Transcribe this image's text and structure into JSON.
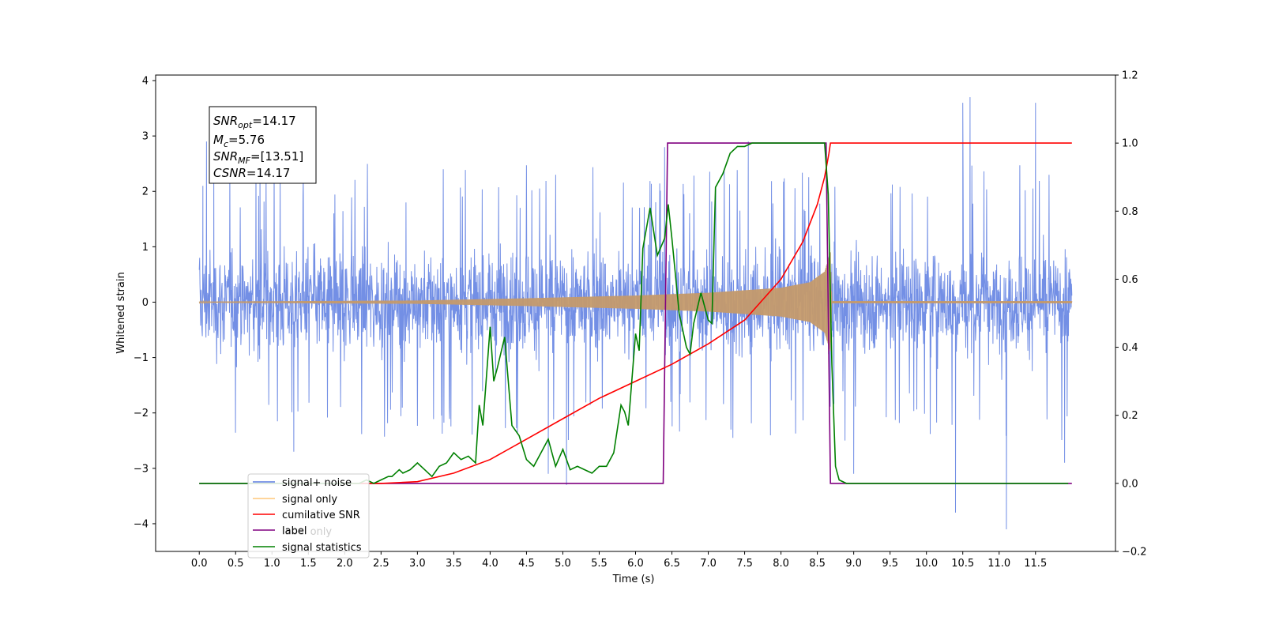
{
  "chart_data": {
    "type": "line",
    "title": "",
    "xlabel": "Time (s)",
    "ylabel": "Whitened strain",
    "xlim": [
      -0.6,
      12.6
    ],
    "ylim": [
      -4.5,
      4.1
    ],
    "y2lim": [
      -0.2,
      1.2
    ],
    "x_ticks": [
      "0.0",
      "0.5",
      "1.0",
      "1.5",
      "2.0",
      "2.5",
      "3.0",
      "3.5",
      "4.0",
      "4.5",
      "5.0",
      "5.5",
      "6.0",
      "6.5",
      "7.0",
      "7.5",
      "8.0",
      "8.5",
      "9.0",
      "9.5",
      "10.0",
      "10.5",
      "11.0",
      "11.5"
    ],
    "y_ticks": [
      "−4",
      "−3",
      "−2",
      "−1",
      "0",
      "1",
      "2",
      "3",
      "4"
    ],
    "y2_ticks": [
      "−0.2",
      "0.0",
      "0.2",
      "0.4",
      "0.6",
      "0.8",
      "1.0",
      "1.2"
    ],
    "annotation": {
      "lines": [
        {
          "var": "SNR",
          "sub": "opt",
          "value": "=14.17"
        },
        {
          "var": "M",
          "sub": "c",
          "value": "=5.76"
        },
        {
          "var": "SNR",
          "sub": "MF",
          "value": "=[13.51]"
        },
        {
          "var": "CSNR",
          "sub": "",
          "value": "=14.17"
        }
      ]
    },
    "legend": {
      "placement": "lower-left",
      "entries": [
        {
          "label": "signal+ noise",
          "color": "#5b7be0"
        },
        {
          "label": "signal only",
          "color": "#ffc77a"
        },
        {
          "label": "cumilative SNR",
          "color": "#ff0000"
        },
        {
          "label": "label",
          "color": "#800080"
        },
        {
          "label": "label only",
          "color": "#cccccc"
        },
        {
          "label": "signal statistics",
          "color": "#008000"
        }
      ]
    },
    "series": [
      {
        "name": "signal+ noise",
        "axis": "left",
        "color": "#5b7be0",
        "x_range": [
          0.0,
          12.0
        ],
        "envelope_typical": [
          -1.6,
          1.8
        ],
        "spikes": [
          {
            "x": 0.05,
            "y": 2.1
          },
          {
            "x": 0.1,
            "y": 2.9
          },
          {
            "x": 0.2,
            "y": 2.5
          },
          {
            "x": 1.3,
            "y": -2.7
          },
          {
            "x": 4.8,
            "y": -3.1
          },
          {
            "x": 5.05,
            "y": -3.3
          },
          {
            "x": 6.4,
            "y": 2.8
          },
          {
            "x": 7.55,
            "y": 2.9
          },
          {
            "x": 10.4,
            "y": -3.8
          },
          {
            "x": 10.5,
            "y": 3.6
          },
          {
            "x": 10.6,
            "y": 3.7
          },
          {
            "x": 11.1,
            "y": -4.1
          },
          {
            "x": 11.5,
            "y": 3.6
          },
          {
            "x": 9.0,
            "y": -3.1
          },
          {
            "x": 11.9,
            "y": -2.9
          }
        ]
      },
      {
        "name": "signal only",
        "axis": "left",
        "color": "#ffc77a",
        "envelope": {
          "x": [
            0.0,
            3.0,
            4.5,
            6.0,
            7.0,
            8.0,
            8.4,
            8.6,
            8.68,
            8.7,
            12.0
          ],
          "y": [
            0.01,
            0.03,
            0.07,
            0.12,
            0.17,
            0.26,
            0.36,
            0.55,
            0.9,
            0.02,
            0.02
          ]
        }
      },
      {
        "name": "cumilative SNR",
        "axis": "right",
        "color": "#ff0000",
        "x": [
          2.0,
          2.5,
          3.0,
          3.5,
          4.0,
          4.5,
          5.0,
          5.5,
          6.0,
          6.5,
          7.0,
          7.5,
          8.0,
          8.3,
          8.5,
          8.6,
          8.66,
          8.68,
          12.0
        ],
        "y": [
          0.0,
          0.0,
          0.005,
          0.03,
          0.07,
          0.13,
          0.19,
          0.25,
          0.3,
          0.35,
          0.41,
          0.48,
          0.6,
          0.71,
          0.82,
          0.9,
          0.97,
          1.0,
          1.0
        ]
      },
      {
        "name": "label",
        "axis": "right",
        "color": "#800080",
        "x": [
          0.0,
          6.38,
          6.44,
          8.62,
          8.68,
          12.0
        ],
        "y": [
          0.0,
          0.0,
          1.0,
          1.0,
          0.0,
          0.0
        ]
      },
      {
        "name": "signal statistics",
        "axis": "right",
        "color": "#008000",
        "x": [
          0.0,
          2.2,
          2.3,
          2.4,
          2.5,
          2.6,
          2.65,
          2.75,
          2.8,
          2.9,
          3.0,
          3.1,
          3.2,
          3.3,
          3.4,
          3.5,
          3.6,
          3.7,
          3.8,
          3.85,
          3.9,
          4.0,
          4.05,
          4.1,
          4.2,
          4.3,
          4.4,
          4.5,
          4.6,
          4.7,
          4.8,
          4.9,
          5.0,
          5.1,
          5.2,
          5.3,
          5.4,
          5.5,
          5.6,
          5.7,
          5.8,
          5.85,
          5.9,
          6.0,
          6.05,
          6.1,
          6.2,
          6.3,
          6.4,
          6.45,
          6.5,
          6.6,
          6.7,
          6.75,
          6.8,
          6.9,
          7.0,
          7.05,
          7.1,
          7.2,
          7.3,
          7.4,
          7.5,
          7.6,
          8.0,
          8.6,
          8.65,
          8.7,
          8.75,
          8.8,
          8.9,
          9.0,
          11.95
        ],
        "y": [
          0.0,
          0.0,
          0.01,
          0.0,
          0.01,
          0.02,
          0.02,
          0.04,
          0.03,
          0.04,
          0.06,
          0.04,
          0.02,
          0.05,
          0.06,
          0.09,
          0.07,
          0.08,
          0.06,
          0.23,
          0.17,
          0.46,
          0.3,
          0.34,
          0.43,
          0.17,
          0.14,
          0.07,
          0.05,
          0.09,
          0.13,
          0.05,
          0.1,
          0.04,
          0.05,
          0.04,
          0.03,
          0.05,
          0.05,
          0.09,
          0.23,
          0.21,
          0.17,
          0.44,
          0.39,
          0.69,
          0.81,
          0.67,
          0.72,
          0.82,
          0.72,
          0.5,
          0.4,
          0.38,
          0.47,
          0.56,
          0.48,
          0.47,
          0.87,
          0.91,
          0.97,
          0.99,
          0.99,
          1.0,
          1.0,
          1.0,
          0.85,
          0.35,
          0.05,
          0.01,
          0.0,
          0.0,
          0.0
        ]
      }
    ]
  }
}
